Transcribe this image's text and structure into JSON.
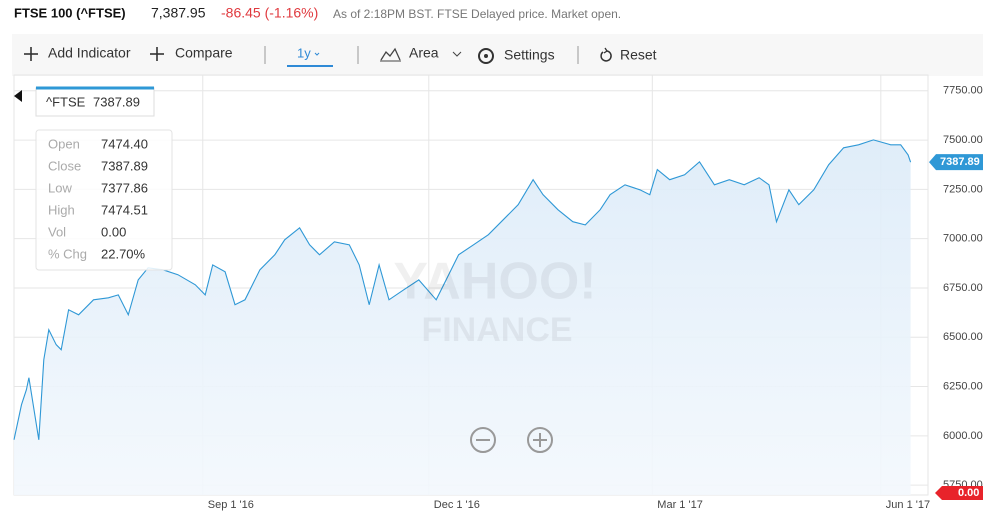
{
  "header": {
    "title": "FTSE 100 (^FTSE)",
    "price": "7,387.95",
    "change": "-86.45 (-1.16%)",
    "status": "As of 2:18PM BST. FTSE Delayed price. Market open."
  },
  "toolbar": {
    "add_indicator": "Add Indicator",
    "compare": "Compare",
    "range": "1y",
    "chart_type": "Area",
    "settings": "Settings",
    "reset": "Reset"
  },
  "tooltip": {
    "symbol": "^FTSE",
    "price": "7387.89",
    "rows": [
      [
        "Open",
        "7474.40"
      ],
      [
        "Close",
        "7387.89"
      ],
      [
        "Low",
        "7377.86"
      ],
      [
        "High",
        "7474.51"
      ],
      [
        "Vol",
        "0.00"
      ],
      [
        "% Chg",
        "22.70%"
      ]
    ]
  },
  "watermark": {
    "line1": "YAHOO!",
    "line2": "FINANCE"
  },
  "chart_data": {
    "type": "area",
    "x": [
      "2016-06-17",
      "2016-06-20",
      "2016-06-22",
      "2016-06-23",
      "2016-06-27",
      "2016-06-29",
      "2016-07-01",
      "2016-07-04",
      "2016-07-06",
      "2016-07-09",
      "2016-07-13",
      "2016-07-19",
      "2016-07-25",
      "2016-07-29",
      "2016-08-02",
      "2016-08-06",
      "2016-08-10",
      "2016-08-16",
      "2016-08-22",
      "2016-08-29",
      "2016-09-02",
      "2016-09-05",
      "2016-09-10",
      "2016-09-14",
      "2016-09-18",
      "2016-09-24",
      "2016-09-30",
      "2016-10-04",
      "2016-10-10",
      "2016-10-14",
      "2016-10-18",
      "2016-10-24",
      "2016-10-30",
      "2016-11-03",
      "2016-11-07",
      "2016-11-11",
      "2016-11-15",
      "2016-11-21",
      "2016-11-27",
      "2016-12-04",
      "2016-12-07",
      "2016-12-13",
      "2016-12-19",
      "2016-12-25",
      "2016-12-31",
      "2017-01-06",
      "2017-01-12",
      "2017-01-16",
      "2017-01-22",
      "2017-01-28",
      "2017-02-02",
      "2017-02-08",
      "2017-02-12",
      "2017-02-18",
      "2017-02-24",
      "2017-02-28",
      "2017-03-03",
      "2017-03-08",
      "2017-03-14",
      "2017-03-20",
      "2017-03-26",
      "2017-04-01",
      "2017-04-07",
      "2017-04-13",
      "2017-04-17",
      "2017-04-20",
      "2017-04-25",
      "2017-04-29",
      "2017-05-05",
      "2017-05-11",
      "2017-05-17",
      "2017-05-23",
      "2017-05-29",
      "2017-06-05",
      "2017-06-09",
      "2017-06-12",
      "2017-06-13"
    ],
    "values": [
      5980,
      6158,
      6234,
      6295,
      5980,
      6386,
      6538,
      6462,
      6437,
      6639,
      6614,
      6690,
      6700,
      6715,
      6614,
      6791,
      6852,
      6842,
      6817,
      6766,
      6715,
      6867,
      6832,
      6665,
      6690,
      6842,
      6918,
      6994,
      7055,
      6969,
      6918,
      6984,
      6969,
      6867,
      6665,
      6867,
      6690,
      6741,
      6791,
      6690,
      6766,
      6918,
      6969,
      7020,
      7096,
      7172,
      7299,
      7223,
      7147,
      7086,
      7070,
      7147,
      7223,
      7273,
      7248,
      7223,
      7350,
      7299,
      7324,
      7390,
      7273,
      7299,
      7273,
      7309,
      7273,
      7086,
      7248,
      7172,
      7248,
      7375,
      7461,
      7476,
      7501,
      7476,
      7476,
      7425,
      7387.89
    ],
    "color": "#2f98d6",
    "xlim": [
      "2016-06-17",
      "2017-06-20"
    ],
    "ylim": [
      5700,
      7830
    ],
    "xticks": [
      {
        "value": "2016-09-01",
        "label": "Sep 1 '16"
      },
      {
        "value": "2016-12-01",
        "label": "Dec 1 '16"
      },
      {
        "value": "2017-03-01",
        "label": "Mar 1 '17"
      },
      {
        "value": "2017-06-01",
        "label": "Jun 1 '17"
      }
    ],
    "yticks": [
      {
        "value": 5750,
        "label": "5750.00"
      },
      {
        "value": 6000,
        "label": "6000.00"
      },
      {
        "value": 6250,
        "label": "6250.00"
      },
      {
        "value": 6500,
        "label": "6500.00"
      },
      {
        "value": 6750,
        "label": "6750.00"
      },
      {
        "value": 7000,
        "label": "7000.00"
      },
      {
        "value": 7250,
        "label": "7250.00"
      },
      {
        "value": 7500,
        "label": "7500.00"
      },
      {
        "value": 7750,
        "label": "7750.00"
      }
    ],
    "grid": true,
    "last_label": "7387.89",
    "volume_label": "0.00"
  }
}
